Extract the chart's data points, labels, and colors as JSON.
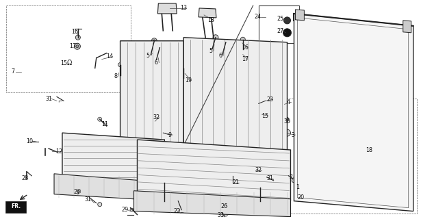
{
  "bg_color": "#ffffff",
  "fig_width": 6.15,
  "fig_height": 3.2,
  "dpi": 100,
  "text_color": "#111111",
  "line_color": "#222222",
  "label_fs": 5.8
}
